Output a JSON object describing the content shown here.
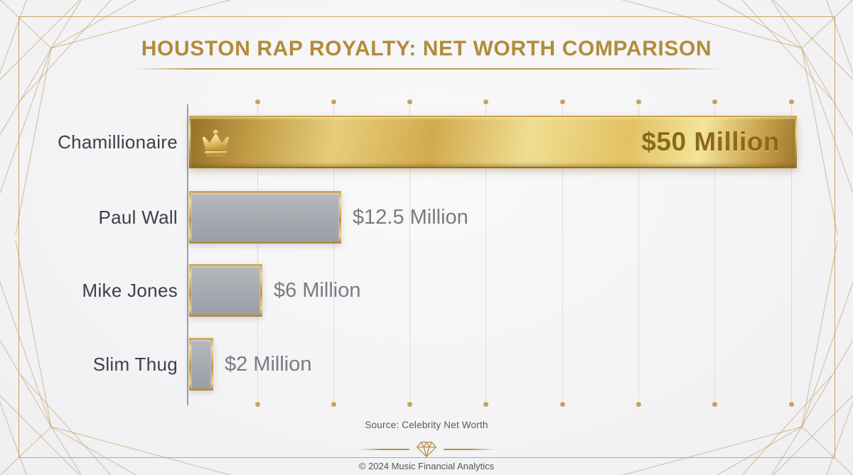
{
  "title": {
    "text": "HOUSTON RAP ROYALTY: NET WORTH COMPARISON"
  },
  "chart_data": {
    "type": "bar",
    "orientation": "horizontal",
    "title": "HOUSTON RAP ROYALTY: NET WORTH COMPARISON",
    "categories": [
      "Chamillionaire",
      "Paul Wall",
      "Mike Jones",
      "Slim Thug"
    ],
    "values": [
      50,
      12.5,
      6,
      2
    ],
    "value_labels": [
      "$50 Million",
      "$12.5 Million",
      "$6 Million",
      "$2 Million"
    ],
    "unit": "USD millions",
    "xlim": [
      0,
      50
    ],
    "grid": true,
    "gridline_count": 8,
    "highlight_index": 0,
    "legend": "none",
    "source": "Source: Celebrity Net Worth"
  },
  "footer": {
    "source_label": "Source: Celebrity Net Worth",
    "copyright": "© 2024 Music Financial Analytics"
  },
  "colors": {
    "background": "#f4f4f6",
    "frame_border": "#c9a660",
    "title_gold": "#b28c3b",
    "gold_bar_mid": "#e7cd79",
    "gold_bar_text": "#8a6a18",
    "silver_bar": "#a6a9af",
    "label_text": "#3d4046",
    "value_text": "#797b80",
    "gridline": "#dbdde1",
    "grid_dot": "#c5a45a"
  },
  "icons": {
    "crown": "crown-icon",
    "diamond": "diamond-icon"
  }
}
